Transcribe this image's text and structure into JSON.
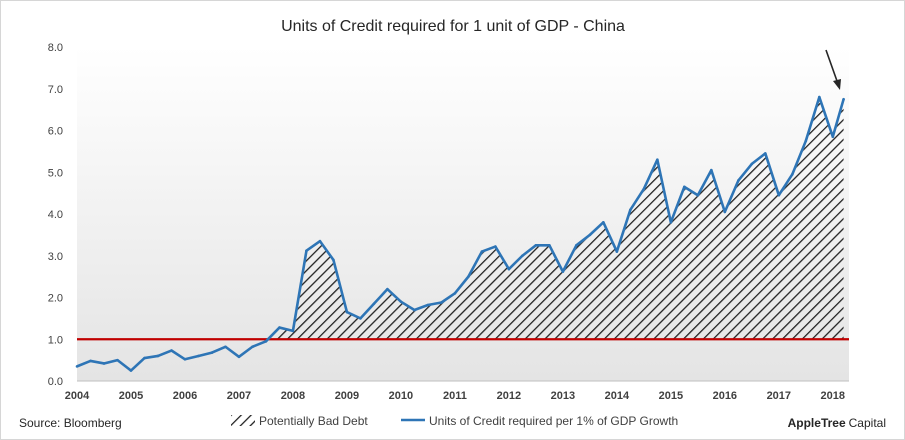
{
  "chart_data": {
    "type": "area",
    "title": "Units of Credit required  for 1 unit of GDP - China",
    "xlabel": "",
    "ylabel": "",
    "ylim": [
      0,
      8
    ],
    "y_ticks": [
      "0.0",
      "1.0",
      "2.0",
      "3.0",
      "4.0",
      "5.0",
      "6.0",
      "7.0",
      "8.0"
    ],
    "x_range": [
      2004.0,
      2018.3
    ],
    "x_ticks": [
      "2004",
      "2005",
      "2006",
      "2007",
      "2008",
      "2009",
      "2010",
      "2011",
      "2012",
      "2013",
      "2014",
      "2015",
      "2016",
      "2017",
      "2018"
    ],
    "grid": false,
    "legend_position": "bottom",
    "threshold": {
      "value": 1.0,
      "color": "#c00000"
    },
    "series": [
      {
        "name": "Units of Credit required per 1% of GDP Growth",
        "color": "#2e75b6",
        "x": [
          2004.0,
          2004.25,
          2004.5,
          2004.75,
          2005.0,
          2005.25,
          2005.5,
          2005.75,
          2006.0,
          2006.25,
          2006.5,
          2006.75,
          2007.0,
          2007.25,
          2007.5,
          2007.75,
          2008.0,
          2008.25,
          2008.5,
          2008.75,
          2009.0,
          2009.25,
          2009.5,
          2009.75,
          2010.0,
          2010.25,
          2010.5,
          2010.75,
          2011.0,
          2011.25,
          2011.5,
          2011.75,
          2012.0,
          2012.25,
          2012.5,
          2012.75,
          2013.0,
          2013.25,
          2013.5,
          2013.75,
          2014.0,
          2014.25,
          2014.5,
          2014.75,
          2015.0,
          2015.25,
          2015.5,
          2015.75,
          2016.0,
          2016.25,
          2016.5,
          2016.75,
          2017.0,
          2017.25,
          2017.5,
          2017.75,
          2018.0,
          2018.2
        ],
        "values": [
          0.35,
          0.48,
          0.42,
          0.5,
          0.25,
          0.55,
          0.6,
          0.73,
          0.52,
          0.6,
          0.68,
          0.82,
          0.58,
          0.82,
          0.95,
          1.28,
          1.2,
          3.12,
          3.35,
          2.9,
          1.65,
          1.5,
          1.85,
          2.2,
          1.9,
          1.7,
          1.82,
          1.88,
          2.1,
          2.5,
          3.1,
          3.22,
          2.68,
          3.0,
          3.25,
          3.25,
          2.62,
          3.25,
          3.5,
          3.8,
          3.1,
          4.1,
          4.6,
          5.3,
          3.8,
          4.65,
          4.45,
          5.05,
          4.05,
          4.8,
          5.2,
          5.45,
          4.45,
          4.95,
          5.75,
          6.8,
          5.85,
          6.75
        ]
      }
    ],
    "bad_debt_legend": "Potentially Bad Debt",
    "annotation": "arrow pointing to latest value",
    "source": "Source: Bloomberg",
    "brand_main": "AppleTree",
    "brand_sub": "Capital",
    "colors": {
      "line": "#2e75b6",
      "threshold": "#c00000",
      "hatch": "#222222",
      "arrow": "#262626"
    }
  }
}
